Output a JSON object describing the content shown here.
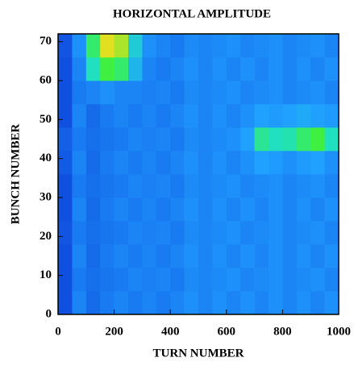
{
  "chart_data": {
    "type": "heatmap",
    "title": "HORIZONTAL  AMPLITUDE",
    "xlabel": "TURN NUMBER",
    "ylabel": "BUNCH NUMBER",
    "x_edges": [
      0,
      50,
      100,
      150,
      200,
      250,
      300,
      350,
      400,
      450,
      500,
      550,
      600,
      650,
      700,
      750,
      800,
      850,
      900,
      950,
      1000
    ],
    "y_edges": [
      0,
      6,
      12,
      18,
      24,
      30,
      36,
      42,
      48,
      54,
      60,
      66,
      72
    ],
    "z": [
      [
        0.3,
        0.4,
        0.35,
        0.38,
        0.4,
        0.38,
        0.4,
        0.38,
        0.4,
        0.42,
        0.4,
        0.42,
        0.4,
        0.42,
        0.4,
        0.42,
        0.4,
        0.42,
        0.4,
        0.42
      ],
      [
        0.3,
        0.38,
        0.36,
        0.37,
        0.38,
        0.4,
        0.39,
        0.4,
        0.38,
        0.41,
        0.4,
        0.41,
        0.42,
        0.4,
        0.41,
        0.42,
        0.4,
        0.41,
        0.42,
        0.4
      ],
      [
        0.3,
        0.4,
        0.35,
        0.38,
        0.4,
        0.38,
        0.4,
        0.38,
        0.4,
        0.42,
        0.4,
        0.42,
        0.4,
        0.42,
        0.4,
        0.42,
        0.4,
        0.42,
        0.4,
        0.42
      ],
      [
        0.31,
        0.38,
        0.36,
        0.37,
        0.38,
        0.4,
        0.39,
        0.4,
        0.38,
        0.41,
        0.4,
        0.41,
        0.42,
        0.4,
        0.41,
        0.42,
        0.4,
        0.41,
        0.42,
        0.4
      ],
      [
        0.3,
        0.4,
        0.35,
        0.38,
        0.4,
        0.38,
        0.4,
        0.38,
        0.4,
        0.42,
        0.4,
        0.42,
        0.4,
        0.42,
        0.4,
        0.42,
        0.4,
        0.42,
        0.4,
        0.42
      ],
      [
        0.3,
        0.38,
        0.36,
        0.37,
        0.38,
        0.4,
        0.39,
        0.4,
        0.38,
        0.41,
        0.4,
        0.41,
        0.42,
        0.4,
        0.41,
        0.42,
        0.4,
        0.41,
        0.42,
        0.4
      ],
      [
        0.32,
        0.4,
        0.35,
        0.38,
        0.4,
        0.38,
        0.4,
        0.38,
        0.4,
        0.42,
        0.4,
        0.42,
        0.4,
        0.42,
        0.45,
        0.44,
        0.42,
        0.44,
        0.45,
        0.42
      ],
      [
        0.33,
        0.38,
        0.36,
        0.37,
        0.38,
        0.4,
        0.39,
        0.4,
        0.38,
        0.41,
        0.4,
        0.41,
        0.42,
        0.45,
        0.65,
        0.6,
        0.62,
        0.7,
        0.75,
        0.6
      ],
      [
        0.3,
        0.4,
        0.35,
        0.38,
        0.4,
        0.38,
        0.4,
        0.38,
        0.4,
        0.42,
        0.4,
        0.42,
        0.4,
        0.42,
        0.45,
        0.44,
        0.45,
        0.47,
        0.45,
        0.44
      ],
      [
        0.3,
        0.38,
        0.4,
        0.42,
        0.4,
        0.4,
        0.39,
        0.4,
        0.38,
        0.41,
        0.4,
        0.41,
        0.42,
        0.4,
        0.41,
        0.42,
        0.4,
        0.41,
        0.42,
        0.4
      ],
      [
        0.3,
        0.4,
        0.6,
        0.75,
        0.7,
        0.5,
        0.4,
        0.38,
        0.4,
        0.42,
        0.4,
        0.42,
        0.4,
        0.42,
        0.4,
        0.42,
        0.4,
        0.42,
        0.4,
        0.42
      ],
      [
        0.31,
        0.42,
        0.7,
        0.9,
        0.85,
        0.55,
        0.42,
        0.4,
        0.38,
        0.41,
        0.4,
        0.41,
        0.42,
        0.4,
        0.41,
        0.42,
        0.4,
        0.41,
        0.42,
        0.4
      ]
    ],
    "colormap": [
      [
        0,
        "#0000a0"
      ],
      [
        0.3,
        "#1050e0"
      ],
      [
        0.45,
        "#20a0ff"
      ],
      [
        0.6,
        "#20e0c0"
      ],
      [
        0.75,
        "#40f040"
      ],
      [
        0.9,
        "#e0e020"
      ]
    ],
    "xlim": [
      0,
      1000
    ],
    "xticks": [
      0,
      200,
      400,
      600,
      800,
      1000
    ],
    "ylim": [
      0,
      72
    ],
    "yticks": [
      0,
      10,
      20,
      30,
      40,
      50,
      60,
      70
    ]
  }
}
